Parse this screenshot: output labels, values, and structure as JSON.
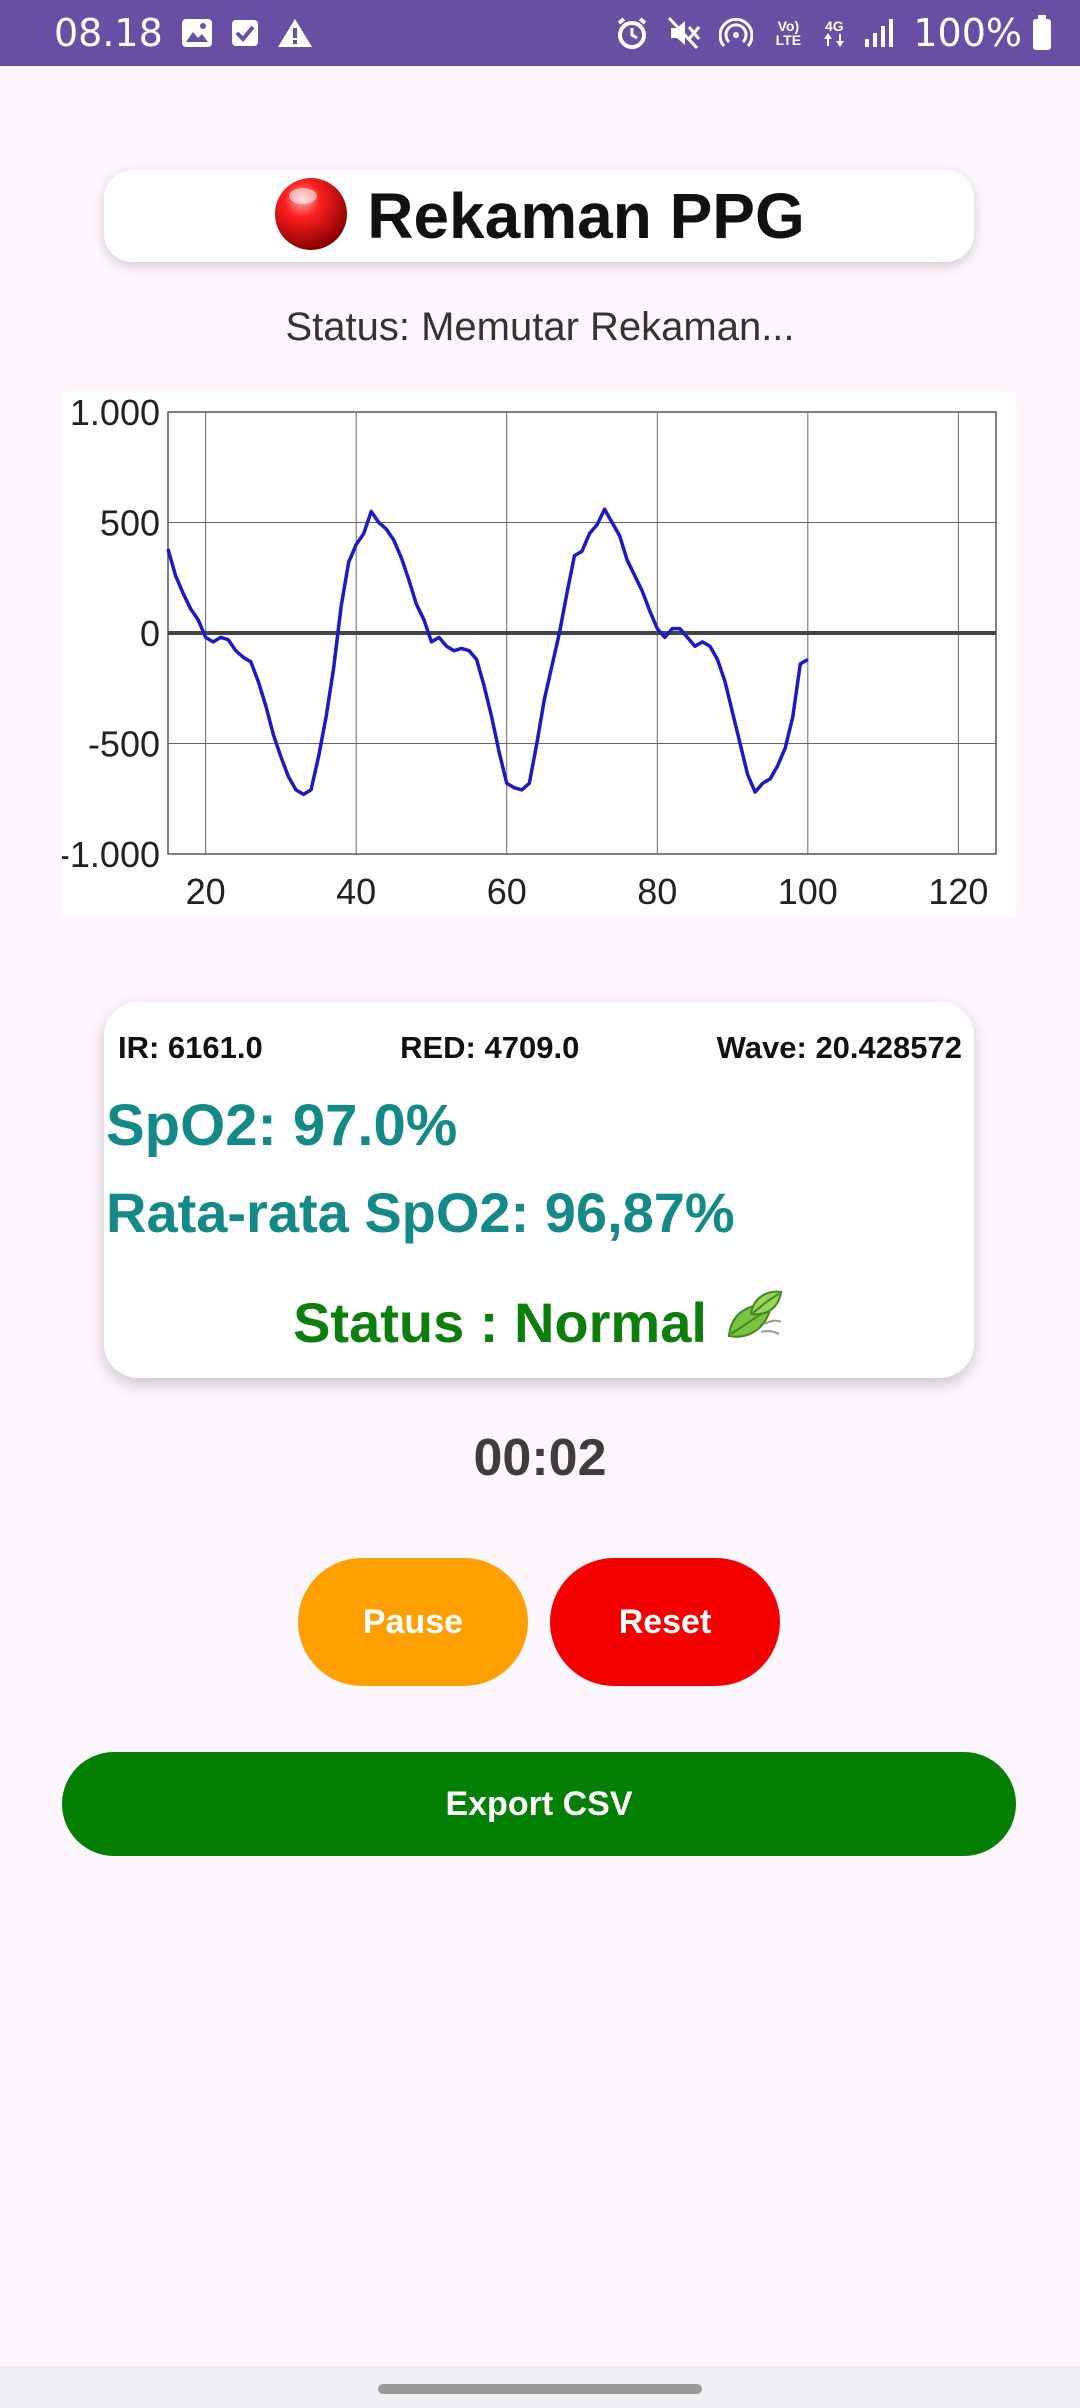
{
  "status_bar": {
    "time": "08.18",
    "battery_text": "100%",
    "network_labels": {
      "volte": "Vo) LTE",
      "4g": "4G"
    },
    "icons": [
      "image-icon",
      "check-box-icon",
      "warning-icon",
      "alarm-icon",
      "mute-icon",
      "hotspot-icon",
      "volte-icon",
      "4g-icon",
      "signal-icon",
      "battery-icon"
    ]
  },
  "header": {
    "title": "Rekaman PPG",
    "record_indicator_color": "#e00000"
  },
  "status_text": "Status: Memutar Rekaman...",
  "chart_data": {
    "type": "line",
    "title": "",
    "xlabel": "",
    "ylabel": "",
    "xlim": [
      15,
      125
    ],
    "ylim": [
      -1000,
      1000
    ],
    "x_ticks": [
      20,
      40,
      60,
      80,
      100,
      120
    ],
    "x_tick_labels": [
      "20",
      "40",
      "60",
      "80",
      "100",
      "120"
    ],
    "y_ticks": [
      1000,
      500,
      0,
      -500,
      -1000
    ],
    "y_tick_labels": [
      "1.000",
      "500",
      "0",
      "-500",
      "-1.000"
    ],
    "grid": true,
    "series": [
      {
        "color": "#1a1ac8",
        "points": [
          [
            15,
            380
          ],
          [
            16,
            260
          ],
          [
            17,
            180
          ],
          [
            18,
            110
          ],
          [
            19,
            60
          ],
          [
            20,
            -20
          ],
          [
            21,
            -40
          ],
          [
            22,
            -20
          ],
          [
            23,
            -30
          ],
          [
            24,
            -80
          ],
          [
            25,
            -110
          ],
          [
            26,
            -130
          ],
          [
            27,
            -220
          ],
          [
            28,
            -330
          ],
          [
            29,
            -460
          ],
          [
            30,
            -560
          ],
          [
            31,
            -650
          ],
          [
            32,
            -710
          ],
          [
            33,
            -730
          ],
          [
            34,
            -710
          ],
          [
            35,
            -560
          ],
          [
            36,
            -380
          ],
          [
            37,
            -160
          ],
          [
            38,
            120
          ],
          [
            39,
            320
          ],
          [
            40,
            400
          ],
          [
            41,
            450
          ],
          [
            42,
            550
          ],
          [
            43,
            500
          ],
          [
            44,
            470
          ],
          [
            45,
            420
          ],
          [
            46,
            340
          ],
          [
            47,
            240
          ],
          [
            48,
            130
          ],
          [
            49,
            60
          ],
          [
            50,
            -40
          ],
          [
            51,
            -20
          ],
          [
            52,
            -60
          ],
          [
            53,
            -80
          ],
          [
            54,
            -70
          ],
          [
            55,
            -80
          ],
          [
            56,
            -120
          ],
          [
            57,
            -240
          ],
          [
            58,
            -380
          ],
          [
            59,
            -540
          ],
          [
            60,
            -680
          ],
          [
            61,
            -700
          ],
          [
            62,
            -710
          ],
          [
            63,
            -680
          ],
          [
            64,
            -500
          ],
          [
            65,
            -300
          ],
          [
            66,
            -150
          ],
          [
            67,
            0
          ],
          [
            68,
            180
          ],
          [
            69,
            350
          ],
          [
            70,
            370
          ],
          [
            71,
            450
          ],
          [
            72,
            490
          ],
          [
            73,
            560
          ],
          [
            74,
            500
          ],
          [
            75,
            440
          ],
          [
            76,
            330
          ],
          [
            77,
            260
          ],
          [
            78,
            190
          ],
          [
            79,
            100
          ],
          [
            80,
            20
          ],
          [
            81,
            -20
          ],
          [
            82,
            20
          ],
          [
            83,
            20
          ],
          [
            84,
            -20
          ],
          [
            85,
            -60
          ],
          [
            86,
            -40
          ],
          [
            87,
            -60
          ],
          [
            88,
            -120
          ],
          [
            89,
            -220
          ],
          [
            90,
            -360
          ],
          [
            91,
            -500
          ],
          [
            92,
            -640
          ],
          [
            93,
            -720
          ],
          [
            94,
            -680
          ],
          [
            95,
            -660
          ],
          [
            96,
            -600
          ],
          [
            97,
            -520
          ],
          [
            98,
            -380
          ],
          [
            99,
            -140
          ],
          [
            100,
            -120
          ]
        ],
        "x_offset_note": ""
      }
    ]
  },
  "readings": {
    "ir": "IR: 6161.0",
    "red": "RED: 4709.0",
    "wave": "Wave: 20.428572",
    "spo2": "SpO2: 97.0%",
    "avg_spo2": "Rata-rata SpO2: 96,87%",
    "health_status": "Status : Normal",
    "status_icon": "leaf-icon"
  },
  "timer": "00:02",
  "buttons": {
    "pause": {
      "label": "Pause",
      "color": "#ffa000"
    },
    "reset": {
      "label": "Reset",
      "color": "#f40000"
    },
    "export": {
      "label": "Export CSV",
      "color": "#038003"
    }
  }
}
